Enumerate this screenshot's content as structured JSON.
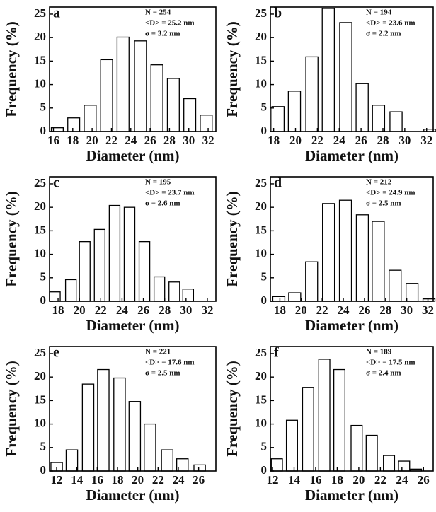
{
  "chart_data": [
    {
      "type": "bar",
      "panel_label": "a",
      "annotations": [
        "N = 254",
        "<D> = 25.2 nm",
        "σ = 3.2 nm"
      ],
      "x_label": "Diameter (nm)",
      "y_label": "Frequency (%)",
      "x": [
        16.4,
        18.1,
        19.8,
        21.5,
        23.2,
        25.0,
        26.7,
        28.4,
        30.1,
        31.8
      ],
      "values": [
        0.8,
        2.9,
        5.6,
        15.3,
        20.1,
        19.3,
        14.2,
        11.3,
        7.0,
        3.5
      ],
      "xlim": [
        15.6,
        32.8
      ],
      "xticks": [
        16,
        18,
        20,
        22,
        24,
        26,
        28,
        30,
        32
      ],
      "ylim": [
        0,
        26.5
      ],
      "yticks": [
        0,
        5,
        10,
        15,
        20,
        25
      ],
      "color": "#ffffff"
    },
    {
      "type": "bar",
      "panel_label": "b",
      "annotations": [
        "N = 194",
        "<D> = 23.6 nm",
        "σ = 2.2 nm"
      ],
      "x_label": "Diameter (nm)",
      "y_label": "Frequency (%)",
      "x": [
        18.4,
        19.9,
        21.5,
        23.0,
        24.6,
        26.1,
        27.6,
        29.2,
        30.7,
        32.3
      ],
      "values": [
        5.3,
        8.6,
        15.9,
        26.2,
        23.2,
        10.2,
        5.6,
        4.2,
        0,
        0.5
      ],
      "xlim": [
        17.7,
        32.6
      ],
      "xticks": [
        18,
        20,
        22,
        24,
        26,
        28,
        30,
        32
      ],
      "ylim": [
        0,
        26.5
      ],
      "yticks": [
        0,
        5,
        10,
        15,
        20,
        25
      ],
      "color": "#ffffff"
    },
    {
      "type": "bar",
      "panel_label": "c",
      "annotations": [
        "N = 195",
        "<D> = 23.7 nm",
        "σ = 2.6 nm"
      ],
      "x_label": "Diameter (nm)",
      "y_label": "Frequency (%)",
      "x": [
        17.7,
        19.2,
        20.5,
        21.9,
        23.3,
        24.7,
        26.1,
        27.5,
        28.9,
        30.2
      ],
      "values": [
        2.0,
        4.6,
        12.7,
        15.3,
        20.4,
        20.0,
        12.7,
        5.2,
        4.1,
        2.6
      ],
      "xlim": [
        17.2,
        32.8
      ],
      "xticks": [
        18,
        20,
        22,
        24,
        26,
        28,
        30,
        32
      ],
      "ylim": [
        0,
        26.5
      ],
      "yticks": [
        0,
        5,
        10,
        15,
        20,
        25
      ],
      "color": "#ffffff"
    },
    {
      "type": "bar",
      "panel_label": "d",
      "annotations": [
        "N = 212",
        "<D> = 24.9 nm",
        "σ = 2.5 nm"
      ],
      "x_label": "Diameter (nm)",
      "y_label": "Frequency (%)",
      "x": [
        17.9,
        19.4,
        21.0,
        22.6,
        24.2,
        25.8,
        27.3,
        28.9,
        30.5,
        32.1
      ],
      "values": [
        1.0,
        1.8,
        8.4,
        20.8,
        21.5,
        18.4,
        17.0,
        6.6,
        3.8,
        0.5
      ],
      "xlim": [
        17.1,
        32.5
      ],
      "xticks": [
        18,
        20,
        22,
        24,
        26,
        28,
        30,
        32
      ],
      "ylim": [
        0,
        26.5
      ],
      "yticks": [
        0,
        5,
        10,
        15,
        20,
        25
      ],
      "color": "#ffffff"
    },
    {
      "type": "bar",
      "panel_label": "e",
      "annotations": [
        "N = 221",
        "<D> = 17.6 nm",
        "σ = 2.5 nm"
      ],
      "x_label": "Diameter (nm)",
      "y_label": "Frequency (%)",
      "x": [
        12.0,
        13.5,
        15.1,
        16.6,
        18.2,
        19.7,
        21.2,
        22.9,
        24.4,
        26.1
      ],
      "values": [
        1.8,
        4.5,
        18.5,
        21.6,
        19.8,
        14.8,
        10.0,
        4.5,
        2.6,
        1.3
      ],
      "xlim": [
        11.3,
        27.7
      ],
      "xticks": [
        12,
        14,
        16,
        18,
        20,
        22,
        24,
        26
      ],
      "ylim": [
        0,
        26.5
      ],
      "yticks": [
        0,
        5,
        10,
        15,
        20,
        25
      ],
      "color": "#ffffff"
    },
    {
      "type": "bar",
      "panel_label": "f",
      "annotations": [
        "N = 189",
        "<D> = 17.5 nm",
        "σ = 2.4 nm"
      ],
      "x_label": "Diameter (nm)",
      "y_label": "Frequency (%)",
      "x": [
        12.4,
        13.8,
        15.3,
        16.8,
        18.2,
        19.8,
        21.2,
        22.8,
        24.2,
        25.3
      ],
      "values": [
        2.6,
        10.8,
        17.8,
        23.8,
        21.6,
        9.7,
        7.6,
        3.3,
        2.1,
        0.4
      ],
      "xlim": [
        11.8,
        26.9
      ],
      "xticks": [
        12,
        14,
        16,
        18,
        20,
        22,
        24,
        26
      ],
      "ylim": [
        0,
        26.5
      ],
      "yticks": [
        0,
        5,
        10,
        15,
        20,
        25
      ],
      "color": "#ffffff"
    }
  ]
}
